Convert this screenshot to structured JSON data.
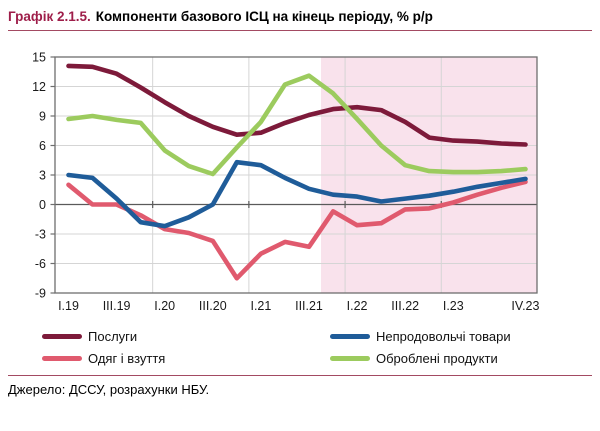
{
  "title": {
    "prefix": "Графік 2.1.5.",
    "text": "Компоненти базового ІСЦ на кінець періоду, % р/р"
  },
  "source": "Джерело: ДССУ, розрахунки НБУ.",
  "colors": {
    "title_accent": "#9e1d49",
    "rule": "#a34a62",
    "grid": "#d5d5d5",
    "zero_line": "#5a5a5a",
    "frame": "#6e6e6e",
    "axis_text": "#1a1a1a",
    "highlight": "#f9e2ec"
  },
  "chart_data": {
    "type": "line",
    "title": "Компоненти базового ІСЦ на кінець періоду, % р/р",
    "xlabel": "",
    "ylabel": "",
    "ylim": [
      -9,
      15
    ],
    "ytick_step": 3,
    "yticks": [
      15,
      12,
      9,
      6,
      3,
      0,
      -3,
      -6,
      -9
    ],
    "grid": true,
    "legend_position": "bottom",
    "x": [
      "I.19",
      "II.19",
      "III.19",
      "IV.19",
      "I.20",
      "II.20",
      "III.20",
      "IV.20",
      "I.21",
      "II.21",
      "III.21",
      "IV.21",
      "I.22",
      "II.22",
      "III.22",
      "IV.22",
      "I.23",
      "II.23",
      "III.23",
      "IV.23"
    ],
    "x_tick_labels": [
      "I.19",
      "III.19",
      "I.20",
      "III.20",
      "I.21",
      "III.21",
      "I.22",
      "III.22",
      "I.23",
      "IV.23"
    ],
    "x_tick_indices": [
      0,
      2,
      4,
      6,
      8,
      10,
      12,
      14,
      16,
      19
    ],
    "highlight_region": {
      "from_index": 10.5,
      "to_index": 20,
      "color": "#f9e2ec"
    },
    "series": [
      {
        "name": "Послуги",
        "color": "#7d1a3a",
        "values": [
          14.1,
          14.0,
          13.3,
          11.9,
          10.4,
          9.0,
          7.9,
          7.1,
          7.3,
          8.3,
          9.1,
          9.7,
          9.9,
          9.6,
          8.4,
          6.8,
          6.5,
          6.4,
          6.2,
          6.1
        ]
      },
      {
        "name": "Непродовольчі товари",
        "color": "#1f5c99",
        "values": [
          3.0,
          2.7,
          0.6,
          -1.8,
          -2.2,
          -1.3,
          0.0,
          4.3,
          4.0,
          2.7,
          1.6,
          1.0,
          0.8,
          0.3,
          0.6,
          0.9,
          1.3,
          1.8,
          2.2,
          2.6
        ]
      },
      {
        "name": "Одяг і взуття",
        "color": "#e05a6e",
        "values": [
          2.0,
          0.0,
          0.0,
          -1.1,
          -2.5,
          -2.9,
          -3.7,
          -7.5,
          -5.0,
          -3.8,
          -4.3,
          -0.7,
          -2.1,
          -1.9,
          -0.5,
          -0.4,
          0.2,
          1.0,
          1.7,
          2.3
        ]
      },
      {
        "name": "Оброблені продукти",
        "color": "#9ccb5e",
        "values": [
          8.7,
          9.0,
          8.6,
          8.3,
          5.5,
          3.9,
          3.1,
          5.8,
          8.4,
          12.2,
          13.1,
          11.3,
          8.7,
          6.0,
          4.0,
          3.4,
          3.3,
          3.3,
          3.4,
          3.6
        ]
      }
    ]
  }
}
